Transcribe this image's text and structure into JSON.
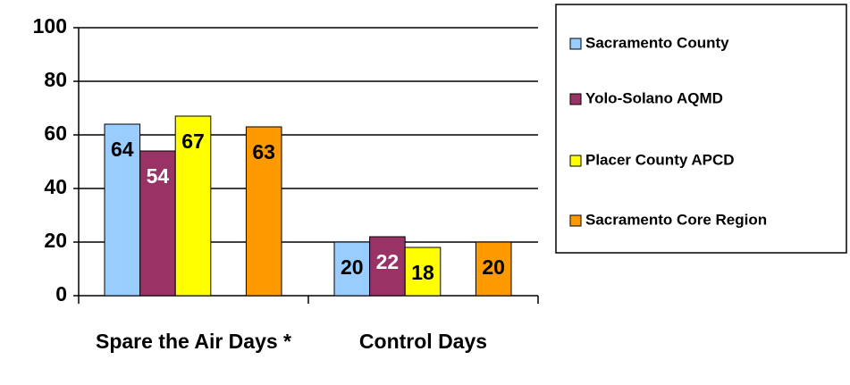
{
  "chart_data": {
    "type": "bar",
    "categories": [
      "Spare the Air Days *",
      "Control Days"
    ],
    "series": [
      {
        "name": "Sacramento County",
        "color": "#99ccff",
        "label_color": "#000000",
        "values": [
          64,
          20
        ]
      },
      {
        "name": "Yolo-Solano AQMD",
        "color": "#993366",
        "label_color": "#ffffff",
        "values": [
          54,
          22
        ]
      },
      {
        "name": "Placer County APCD",
        "color": "#ffff00",
        "label_color": "#000000",
        "values": [
          67,
          18
        ]
      },
      {
        "name": "Sacramento Core Region",
        "color": "#ff9900",
        "label_color": "#000000",
        "values": [
          63,
          20
        ]
      }
    ],
    "ylim": [
      0,
      100
    ],
    "yticks": [
      0,
      20,
      40,
      60,
      80,
      100
    ],
    "grid": true,
    "legend": "right"
  }
}
